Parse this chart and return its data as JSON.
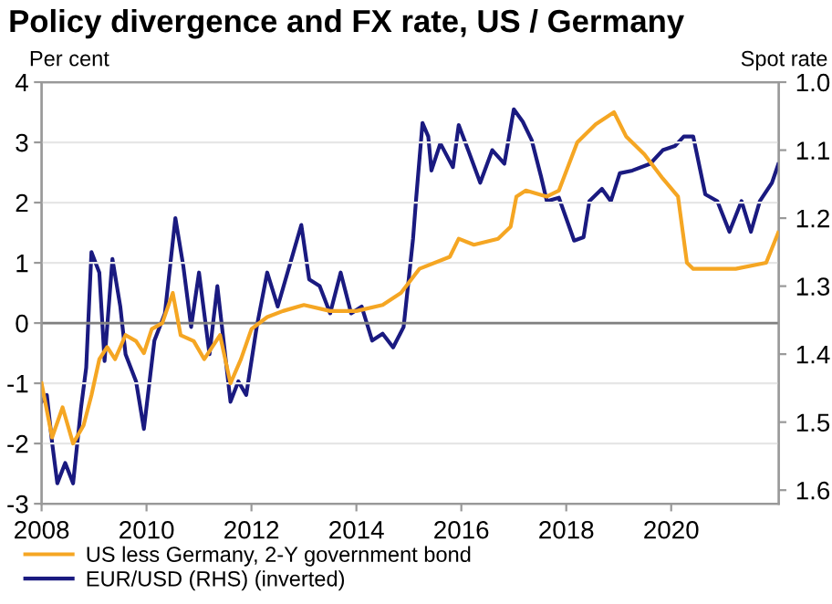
{
  "chart_data": {
    "type": "line",
    "title": "Policy divergence and FX rate, US / Germany",
    "ylabel": "Per cent",
    "y2label": "Spot rate",
    "xlim": [
      2008,
      2022.05
    ],
    "xticks": [
      2008,
      2010,
      2012,
      2014,
      2016,
      2018,
      2020
    ],
    "ylim": [
      -3,
      4
    ],
    "yticks": [
      -3,
      -2,
      -1,
      0,
      1,
      2,
      3,
      4
    ],
    "y2lim": [
      1.62,
      1.0
    ],
    "y2ticks": [
      {
        "value": 1.0,
        "label": "1.0"
      },
      1.1,
      1.2,
      1.3,
      1.4,
      1.5,
      1.6
    ],
    "grid": "y",
    "legend": "bottom",
    "line_style": "solid",
    "marker": "none",
    "ref_lines": [
      {
        "axis": "y",
        "value": 0,
        "color": "#808080"
      }
    ],
    "series": [
      {
        "name": "US less Germany, 2-Y government bond",
        "color": "#f5a623",
        "x": [
          2008.0,
          2008.2,
          2008.4,
          2008.6,
          2008.8,
          2008.95,
          2009.1,
          2009.25,
          2009.4,
          2009.6,
          2009.8,
          2009.95,
          2010.1,
          2010.3,
          2010.5,
          2010.65,
          2010.9,
          2011.1,
          2011.4,
          2011.6,
          2011.8,
          2012.0,
          2012.3,
          2012.6,
          2013.0,
          2013.5,
          2014.0,
          2014.5,
          2014.85,
          2015.2,
          2015.78,
          2015.95,
          2016.24,
          2016.7,
          2016.94,
          2017.05,
          2017.23,
          2017.63,
          2017.86,
          2018.21,
          2018.56,
          2018.91,
          2019.14,
          2019.49,
          2019.84,
          2020.13,
          2020.3,
          2020.42,
          2020.88,
          2021.23,
          2021.81,
          2022.04
        ],
        "values": [
          -1.0,
          -1.9,
          -1.4,
          -2.0,
          -1.7,
          -1.2,
          -0.6,
          -0.4,
          -0.6,
          -0.2,
          -0.3,
          -0.5,
          -0.1,
          0.0,
          0.5,
          -0.2,
          -0.3,
          -0.6,
          -0.2,
          -1.0,
          -0.6,
          -0.1,
          0.1,
          0.2,
          0.3,
          0.2,
          0.2,
          0.3,
          0.5,
          0.9,
          1.1,
          1.4,
          1.3,
          1.4,
          1.6,
          2.1,
          2.2,
          2.1,
          2.2,
          3.0,
          3.3,
          3.5,
          3.1,
          2.8,
          2.4,
          2.1,
          1.0,
          0.9,
          0.9,
          0.9,
          1.0,
          1.5
        ]
      },
      {
        "name": "EUR/USD (RHS) (inverted)",
        "color": "#1a1a80",
        "axis": "y2",
        "x": [
          2008.0,
          2008.1,
          2008.2,
          2008.3,
          2008.45,
          2008.6,
          2008.75,
          2008.85,
          2008.95,
          2009.1,
          2009.2,
          2009.35,
          2009.5,
          2009.6,
          2009.8,
          2009.95,
          2010.15,
          2010.35,
          2010.55,
          2010.7,
          2010.85,
          2011.0,
          2011.2,
          2011.35,
          2011.6,
          2011.75,
          2011.9,
          2012.1,
          2012.3,
          2012.5,
          2012.8,
          2012.95,
          2013.1,
          2013.3,
          2013.5,
          2013.7,
          2013.9,
          2014.1,
          2014.3,
          2014.5,
          2014.7,
          2014.9,
          2015.08,
          2015.14,
          2015.26,
          2015.37,
          2015.43,
          2015.6,
          2015.84,
          2015.95,
          2016.13,
          2016.36,
          2016.59,
          2016.82,
          2017.0,
          2017.17,
          2017.34,
          2017.52,
          2017.63,
          2017.86,
          2018.15,
          2018.33,
          2018.44,
          2018.68,
          2018.85,
          2019.02,
          2019.26,
          2019.6,
          2019.84,
          2020.07,
          2020.24,
          2020.42,
          2020.65,
          2020.88,
          2021.11,
          2021.34,
          2021.52,
          2021.69,
          2021.92,
          2022.04
        ],
        "values": [
          1.47,
          1.46,
          1.53,
          1.59,
          1.56,
          1.59,
          1.48,
          1.42,
          1.25,
          1.28,
          1.41,
          1.26,
          1.33,
          1.4,
          1.44,
          1.51,
          1.38,
          1.34,
          1.2,
          1.27,
          1.36,
          1.28,
          1.4,
          1.3,
          1.47,
          1.44,
          1.46,
          1.36,
          1.28,
          1.33,
          1.25,
          1.21,
          1.29,
          1.3,
          1.34,
          1.28,
          1.34,
          1.33,
          1.38,
          1.37,
          1.39,
          1.36,
          1.23,
          1.17,
          1.06,
          1.08,
          1.13,
          1.09,
          1.125,
          1.063,
          1.1,
          1.148,
          1.1,
          1.12,
          1.04,
          1.058,
          1.085,
          1.139,
          1.175,
          1.17,
          1.233,
          1.228,
          1.175,
          1.157,
          1.175,
          1.134,
          1.13,
          1.12,
          1.1,
          1.094,
          1.08,
          1.08,
          1.165,
          1.175,
          1.22,
          1.175,
          1.22,
          1.175,
          1.148,
          1.121
        ]
      }
    ]
  }
}
